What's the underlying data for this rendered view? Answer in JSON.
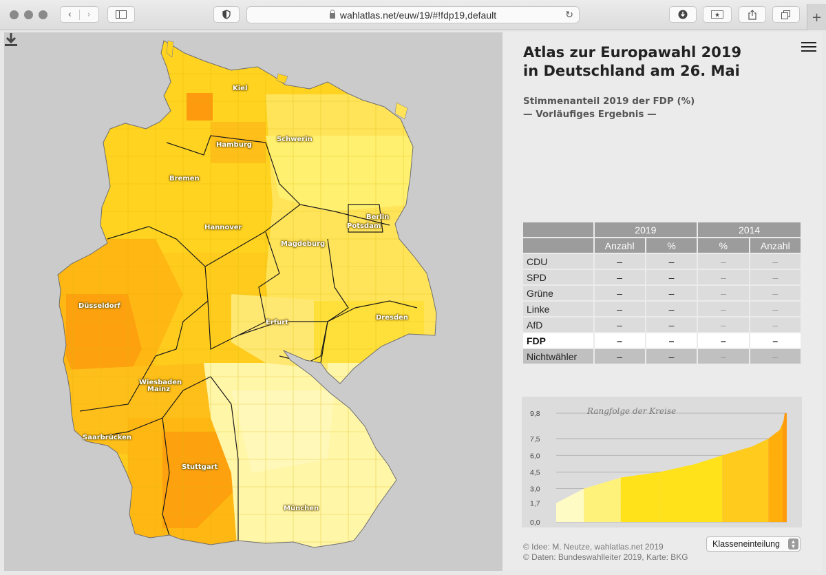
{
  "browser": {
    "url": "wahlatlas.net/euw/19/#!fdp19,default"
  },
  "map": {
    "cities": [
      {
        "name": "Kiel"
      },
      {
        "name": "Hamburg"
      },
      {
        "name": "Schwerin"
      },
      {
        "name": "Bremen"
      },
      {
        "name": "Berlin"
      },
      {
        "name": "Potsdam"
      },
      {
        "name": "Hannover"
      },
      {
        "name": "Magdeburg"
      },
      {
        "name": "Düsseldorf"
      },
      {
        "name": "Erfurt"
      },
      {
        "name": "Dresden"
      },
      {
        "name": "Wiesbaden"
      },
      {
        "name": "Mainz"
      },
      {
        "name": "Saarbrücken"
      },
      {
        "name": "Stuttgart"
      },
      {
        "name": "München"
      }
    ],
    "colors": {
      "background": "#cbcbcb",
      "lightest": "#fffbc4",
      "light": "#fff27a",
      "mid": "#ffe21a",
      "mid_dark": "#ffcc1e",
      "dark": "#ffae0c",
      "darkest": "#fd9a0e"
    }
  },
  "panel": {
    "title_line1": "Atlas zur Europawahl 2019",
    "title_line2": "in Deutschland am 26. Mai",
    "subtitle_line1": "Stimmenanteil 2019 der FDP (%)",
    "subtitle_line2": "— Vorläufiges Ergebnis —"
  },
  "table": {
    "year_headers": [
      "2019",
      "2014"
    ],
    "col_headers": [
      "Anzahl",
      "%",
      "%",
      "Anzahl"
    ],
    "rows": [
      {
        "party": "CDU",
        "values": [
          "–",
          "–",
          "–",
          "–"
        ]
      },
      {
        "party": "SPD",
        "values": [
          "–",
          "–",
          "–",
          "–"
        ]
      },
      {
        "party": "Grüne",
        "values": [
          "–",
          "–",
          "–",
          "–"
        ]
      },
      {
        "party": "Linke",
        "values": [
          "–",
          "–",
          "–",
          "–"
        ]
      },
      {
        "party": "AfD",
        "values": [
          "–",
          "–",
          "–",
          "–"
        ]
      },
      {
        "party": "FDP",
        "values": [
          "–",
          "–",
          "–",
          "–"
        ]
      },
      {
        "party": "Nichtwähler",
        "values": [
          "–",
          "–",
          "–",
          "–"
        ]
      }
    ]
  },
  "rank_chart": {
    "title": "Rangfolge der Kreise",
    "ticks": [
      "9,8",
      "7,5",
      "6,0",
      "4,5",
      "3,0",
      "1,7",
      "0,0"
    ]
  },
  "chart_data": {
    "type": "area",
    "title": "Rangfolge der Kreise",
    "y_ticks": [
      9.8,
      7.5,
      6.0,
      4.5,
      3.0,
      1.7,
      0.0
    ],
    "ylim": [
      0,
      9.8
    ],
    "class_breaks": [
      1.7,
      3.0,
      4.5,
      6.0,
      7.5,
      9.8
    ],
    "x": [
      0,
      0.12,
      0.28,
      0.45,
      0.6,
      0.72,
      0.85,
      0.92,
      0.97,
      1.0
    ],
    "values": [
      1.7,
      3.0,
      4.0,
      4.5,
      5.2,
      6.0,
      6.8,
      7.5,
      8.3,
      9.8
    ]
  },
  "footer": {
    "credit1": "© Idee: M. Neutze, wahlatlas.net 2019",
    "credit2": "© Daten: Bundeswahlleiter 2019, Karte: BKG",
    "select_value": "Klasseneinteilung"
  }
}
